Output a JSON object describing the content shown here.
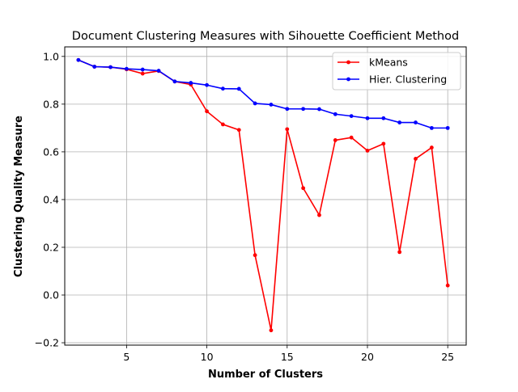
{
  "chart_data": {
    "type": "line",
    "title": "Document Clustering Measures with Sihouette Coefficient Method",
    "xlabel": "Number of Clusters",
    "ylabel": "Clustering Quality Measure",
    "x": [
      2,
      3,
      4,
      5,
      6,
      7,
      8,
      9,
      10,
      11,
      12,
      13,
      14,
      15,
      16,
      17,
      18,
      19,
      20,
      21,
      22,
      23,
      24,
      25
    ],
    "xlim": [
      1.15,
      26.15
    ],
    "ylim": [
      -0.21,
      1.04
    ],
    "x_ticks": [
      5,
      10,
      15,
      20,
      25
    ],
    "x_tick_labels": [
      "5",
      "10",
      "15",
      "20",
      "25"
    ],
    "y_ticks": [
      -0.2,
      0.0,
      0.2,
      0.4,
      0.6,
      0.8,
      1.0
    ],
    "y_tick_labels": [
      "−0.2",
      "0.0",
      "0.2",
      "0.4",
      "0.6",
      "0.8",
      "1.0"
    ],
    "grid": true,
    "legend_position": "top-right",
    "series": [
      {
        "name": "kMeans",
        "color": "#ff0000",
        "values": [
          0.985,
          0.957,
          0.955,
          0.946,
          0.928,
          0.939,
          0.895,
          0.882,
          0.77,
          0.715,
          0.692,
          0.167,
          -0.148,
          0.695,
          0.448,
          0.335,
          0.649,
          0.66,
          0.605,
          0.634,
          0.18,
          0.571,
          0.618,
          0.04
        ]
      },
      {
        "name": "Hier. Clustering",
        "color": "#0000ff",
        "values": [
          0.985,
          0.957,
          0.955,
          0.948,
          0.945,
          0.94,
          0.895,
          0.889,
          0.88,
          0.865,
          0.864,
          0.803,
          0.798,
          0.78,
          0.78,
          0.779,
          0.758,
          0.75,
          0.741,
          0.741,
          0.723,
          0.723,
          0.7,
          0.7
        ]
      }
    ]
  }
}
